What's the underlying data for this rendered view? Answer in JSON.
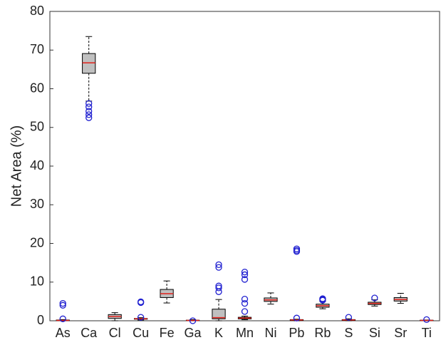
{
  "chart_data": {
    "type": "box",
    "y_label": "Net Area (%)",
    "categories": [
      "As",
      "Ca",
      "Cl",
      "Cu",
      "Fe",
      "Ga",
      "K",
      "Mn",
      "Ni",
      "Pb",
      "Rb",
      "S",
      "Si",
      "Sr",
      "Ti"
    ],
    "boxes": [
      {
        "min": 0,
        "q1": 0,
        "median": 0.1,
        "q3": 0.2,
        "max": 0.3,
        "outliers": [
          4.5,
          4.0,
          0.5
        ]
      },
      {
        "min": 56.8,
        "q1": 64.0,
        "median": 66.7,
        "q3": 69.1,
        "max": 73.5,
        "outliers": [
          56.2,
          55.3,
          54.2,
          53.3,
          52.5
        ]
      },
      {
        "min": 0,
        "q1": 0.6,
        "median": 1.1,
        "q3": 1.6,
        "max": 2.1,
        "outliers": []
      },
      {
        "min": 0.2,
        "q1": 0.4,
        "median": 0.5,
        "q3": 0.6,
        "max": 0.8,
        "outliers": [
          4.9,
          4.7,
          0.9
        ]
      },
      {
        "min": 4.6,
        "q1": 6.0,
        "median": 7.0,
        "q3": 8.1,
        "max": 10.3,
        "outliers": []
      },
      {
        "min": 0,
        "q1": 0.05,
        "median": 0.1,
        "q3": 0.15,
        "max": 0.3,
        "outliers": [
          0
        ]
      },
      {
        "min": 0,
        "q1": 0.5,
        "median": 0.8,
        "q3": 3.0,
        "max": 5.5,
        "outliers": [
          14.5,
          13.8,
          9.0,
          8.5,
          7.5
        ]
      },
      {
        "min": 0.3,
        "q1": 0.5,
        "median": 0.7,
        "q3": 0.9,
        "max": 1.2,
        "outliers": [
          12.6,
          11.9,
          10.7,
          5.6,
          4.5,
          2.4
        ]
      },
      {
        "min": 4.3,
        "q1": 5.0,
        "median": 5.4,
        "q3": 5.9,
        "max": 7.2,
        "outliers": []
      },
      {
        "min": 0,
        "q1": 0.1,
        "median": 0.2,
        "q3": 0.3,
        "max": 0.4,
        "outliers": [
          18.6,
          18.2,
          17.9,
          0.7
        ]
      },
      {
        "min": 3.1,
        "q1": 3.5,
        "median": 3.9,
        "q3": 4.3,
        "max": 5.0,
        "outliers": [
          5.7,
          5.5,
          5.3
        ]
      },
      {
        "min": 0,
        "q1": 0.1,
        "median": 0.2,
        "q3": 0.3,
        "max": 0.5,
        "outliers": [
          0.9
        ]
      },
      {
        "min": 3.8,
        "q1": 4.2,
        "median": 4.5,
        "q3": 4.8,
        "max": 5.4,
        "outliers": [
          5.9
        ]
      },
      {
        "min": 4.5,
        "q1": 5.1,
        "median": 5.5,
        "q3": 6.0,
        "max": 7.1,
        "outliers": []
      },
      {
        "min": 0,
        "q1": 0.05,
        "median": 0.1,
        "q3": 0.15,
        "max": 0.2,
        "outliers": [
          0.3
        ]
      }
    ],
    "box_color": "#c0c0c0",
    "median_color": "#e0201a",
    "outlier_color": "#1f1fd0",
    "ylim": [
      0,
      80
    ],
    "yticks": [
      0,
      10,
      20,
      30,
      40,
      50,
      60,
      70,
      80
    ]
  }
}
